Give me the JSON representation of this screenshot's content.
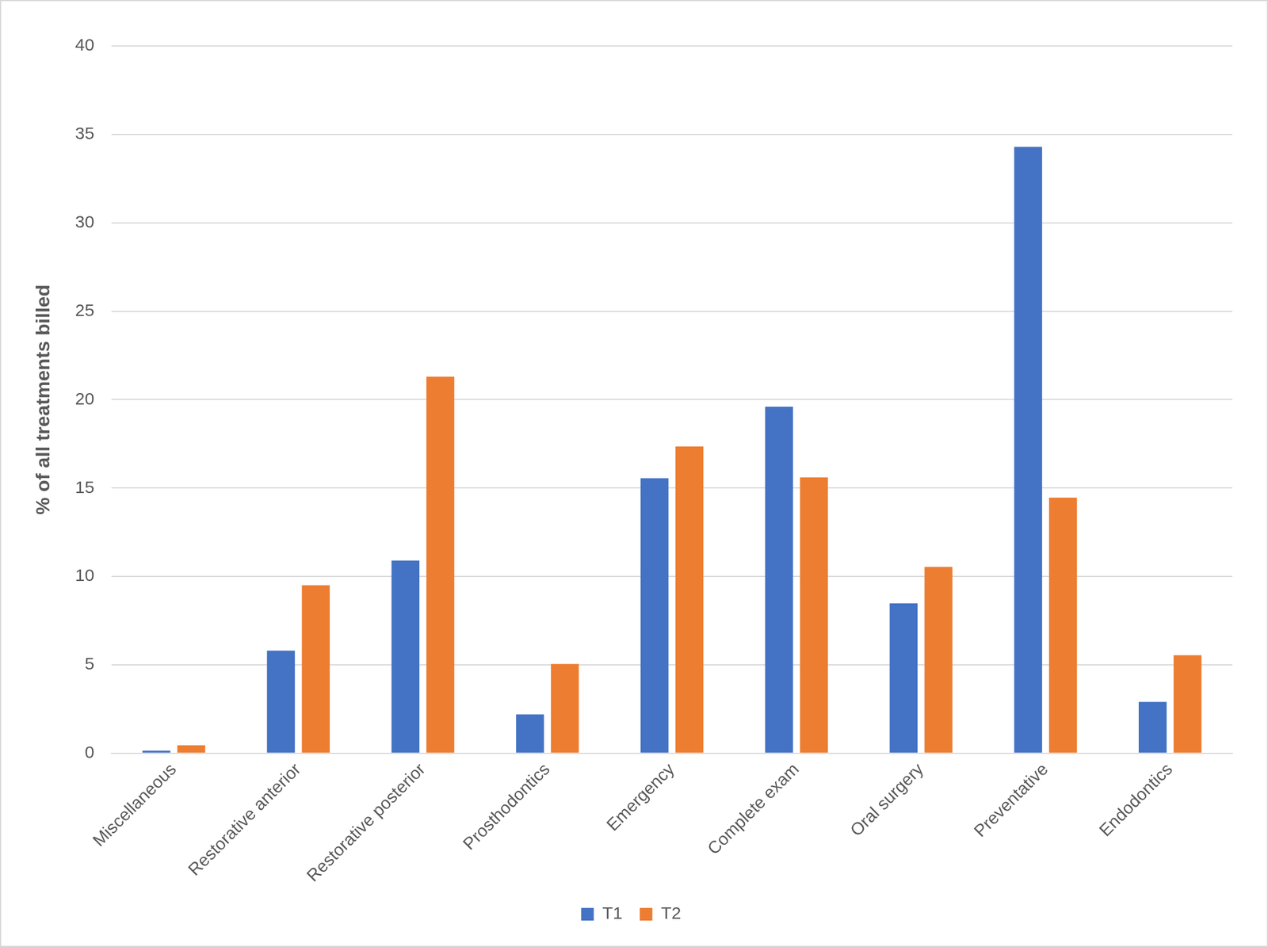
{
  "chart_data": {
    "type": "bar",
    "categories": [
      "Miscellaneous",
      "Restorative anterior",
      "Restorative posterior",
      "Prosthodontics",
      "Emergency",
      "Complete exam",
      "Oral surgery",
      "Preventative",
      "Endodontics"
    ],
    "series": [
      {
        "name": "T1",
        "color": "#4472c4",
        "values": [
          0.15,
          5.8,
          10.9,
          2.2,
          15.55,
          19.6,
          8.48,
          34.3,
          2.9
        ]
      },
      {
        "name": "T2",
        "color": "#ed7d31",
        "values": [
          0.45,
          9.5,
          21.3,
          5.05,
          17.35,
          15.6,
          10.54,
          14.46,
          5.54
        ]
      }
    ],
    "y_label": "% of all treatments billed",
    "ylim": [
      0,
      40
    ],
    "yticks": [
      0,
      5,
      10,
      15,
      20,
      25,
      30,
      35,
      40
    ],
    "grid": true,
    "legend": "bottom"
  }
}
